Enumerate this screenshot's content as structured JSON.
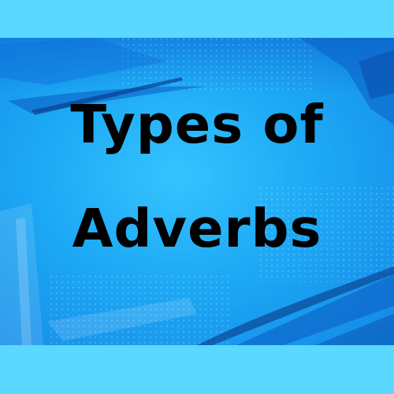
{
  "title": {
    "line1": "Types of",
    "line2": "Adverbs"
  },
  "colors": {
    "outer_background": "#5ad8ff",
    "panel_center": "#35c4ff",
    "panel_edge": "#1488e6",
    "brush_strokes": "#0f6fd6",
    "text": "#000000"
  }
}
